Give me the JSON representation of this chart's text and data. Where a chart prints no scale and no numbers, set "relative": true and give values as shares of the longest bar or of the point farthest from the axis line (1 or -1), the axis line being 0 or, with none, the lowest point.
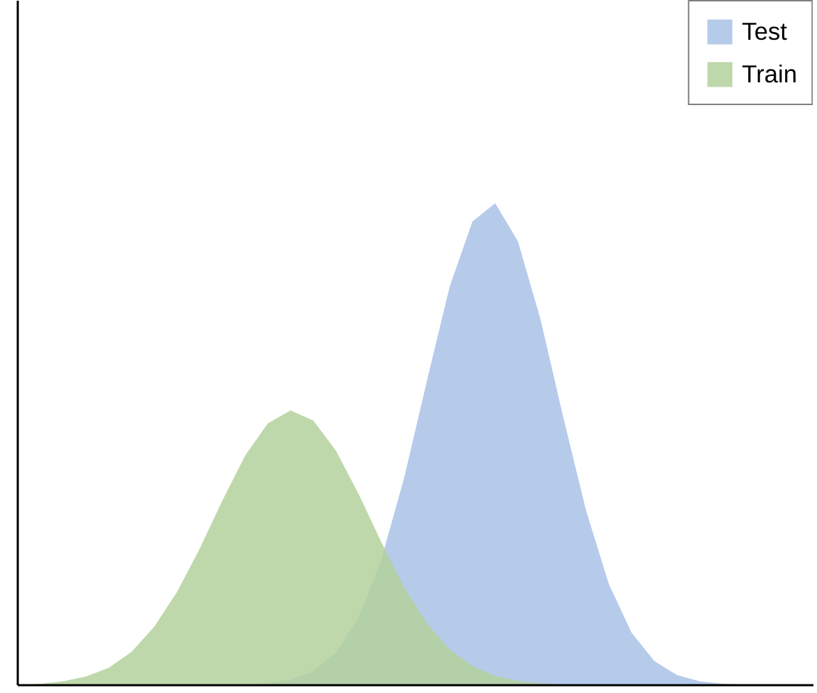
{
  "chart_data": {
    "type": "area",
    "relative": true,
    "grid": false,
    "legend": "top right",
    "categories": [
      null,
      null,
      null,
      null,
      null,
      null,
      null,
      null,
      null,
      null,
      null,
      null,
      null,
      null,
      null,
      null,
      null,
      null,
      null,
      null,
      null,
      null,
      null,
      null,
      null,
      null,
      null,
      null,
      null,
      null,
      null,
      null,
      null,
      null,
      null,
      null
    ],
    "series": [
      {
        "name": "Test",
        "color": "#a9c2e6",
        "values": [
          0,
          0,
          0,
          0,
          0,
          0,
          0,
          0,
          0,
          0,
          0,
          0.004,
          0.011,
          0.029,
          0.068,
          0.141,
          0.262,
          0.431,
          0.632,
          0.827,
          0.962,
          1,
          0.921,
          0.758,
          0.555,
          0.362,
          0.21,
          0.109,
          0.05,
          0.021,
          0.008,
          0.003,
          0.001,
          0,
          0,
          0
        ]
      },
      {
        "name": "Train",
        "color": "#b3d19c",
        "values": [
          0,
          0.003,
          0.008,
          0.018,
          0.036,
          0.069,
          0.121,
          0.193,
          0.283,
          0.383,
          0.476,
          0.543,
          0.57,
          0.549,
          0.486,
          0.396,
          0.296,
          0.203,
          0.128,
          0.074,
          0.04,
          0.019,
          0.009,
          0.004,
          0.001,
          0,
          0,
          0,
          0,
          0,
          0,
          0,
          0,
          0,
          0,
          0
        ]
      }
    ]
  }
}
